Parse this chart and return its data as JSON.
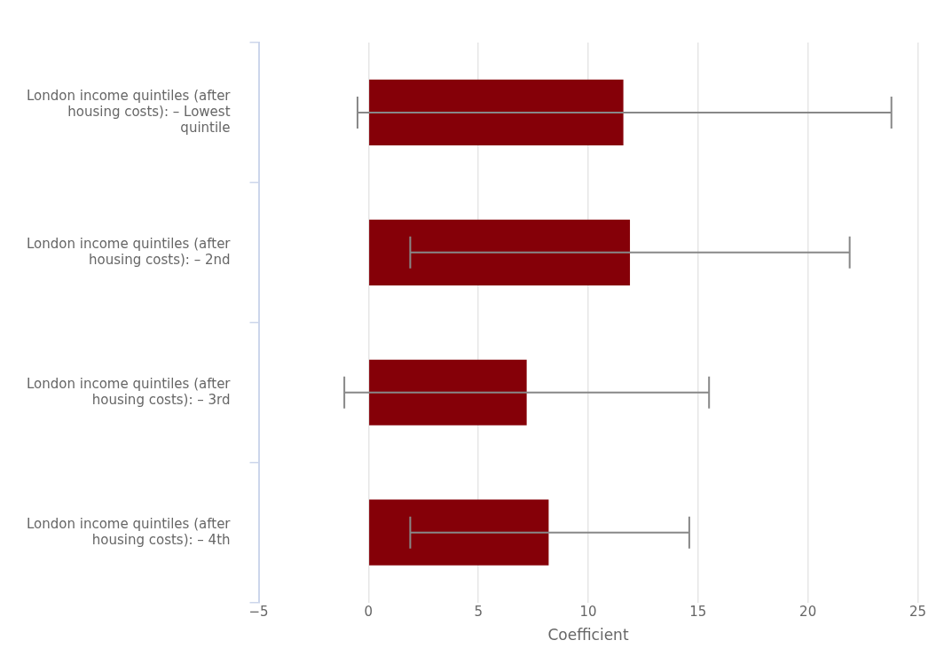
{
  "chart_data": {
    "type": "bar",
    "orientation": "horizontal",
    "xlabel": "Coefficient",
    "categories": [
      "London income quintiles (after housing costs): – Lowest quintile",
      "London income quintiles (after housing costs): – 2nd",
      "London income quintiles (after housing costs): – 3rd",
      "London income quintiles (after housing costs): – 4th"
    ],
    "values": [
      11.6,
      11.9,
      7.2,
      8.2
    ],
    "errors": [
      [
        -0.5,
        23.8
      ],
      [
        1.9,
        21.9
      ],
      [
        -1.1,
        15.5
      ],
      [
        1.9,
        14.6
      ]
    ],
    "color": "#850008",
    "xlim": [
      -5,
      25
    ],
    "xticks": [
      {
        "value": -5,
        "label": "−5"
      },
      0,
      5,
      10,
      15,
      20,
      25
    ],
    "grid": "x",
    "legend": false
  }
}
